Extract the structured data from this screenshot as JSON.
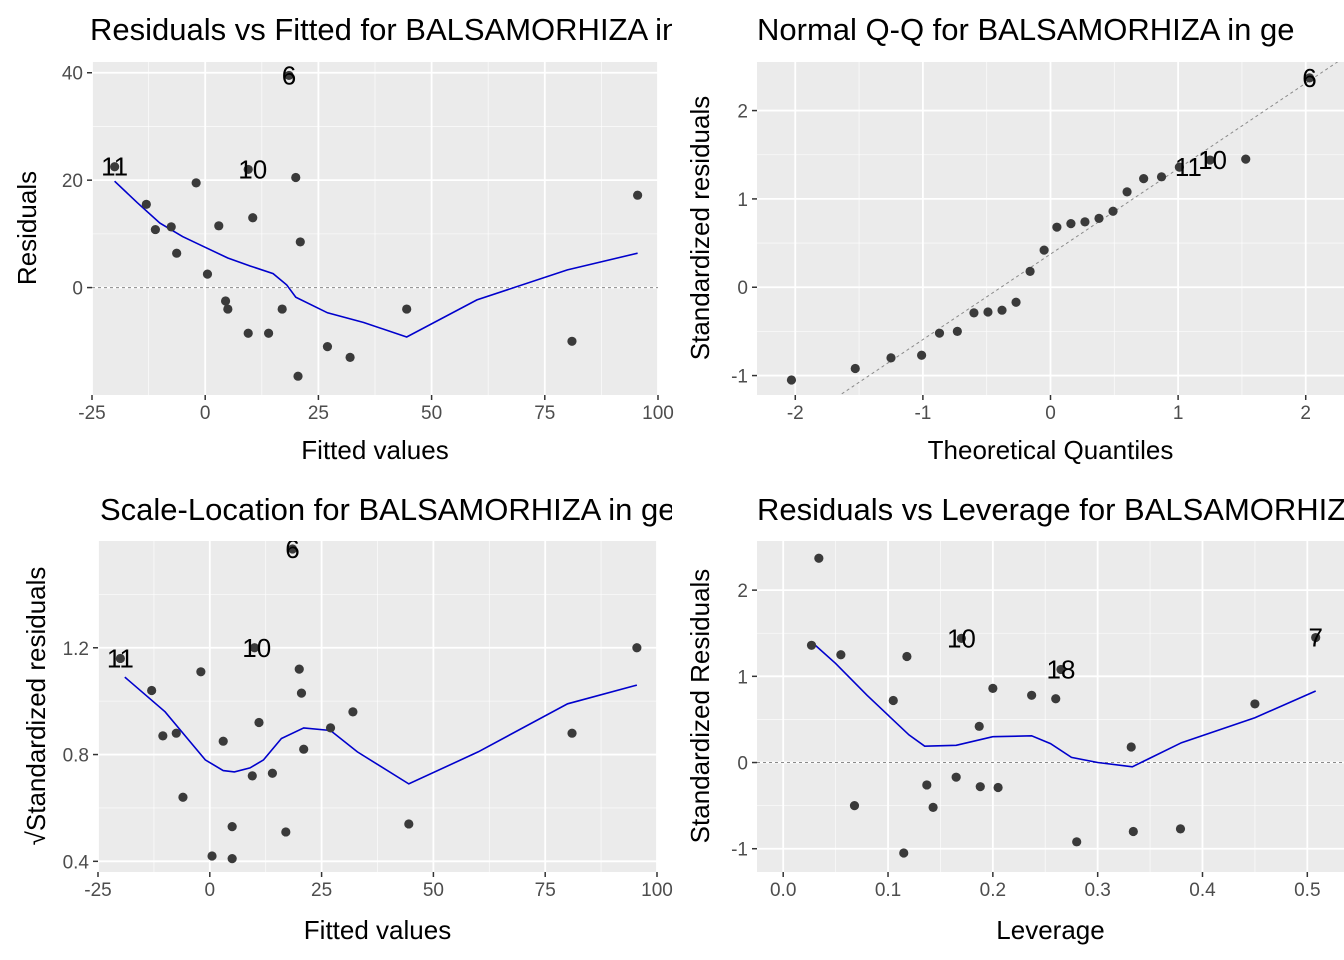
{
  "chart_data": [
    {
      "id": "p1",
      "type": "scatter",
      "title": "Residuals vs Fitted for BALSAMORHIZA in ge",
      "xlabel": "Fitted values",
      "ylabel": "Residuals",
      "xlim": [
        -25,
        100
      ],
      "ylim": [
        -20,
        42
      ],
      "xticks": [
        -25,
        0,
        25,
        50,
        75,
        100
      ],
      "yticks": [
        0,
        20,
        40
      ],
      "yminor": [
        10,
        30
      ],
      "xtick_labels": [
        "-25",
        "0",
        "25",
        "50",
        "75",
        "100"
      ],
      "ytick_labels": [
        "0",
        "20",
        "40"
      ],
      "hline": 0,
      "points": [
        {
          "x": -20,
          "y": 22.5
        },
        {
          "x": -13,
          "y": 15.5
        },
        {
          "x": -11,
          "y": 10.8
        },
        {
          "x": -7.5,
          "y": 11.3
        },
        {
          "x": -6.3,
          "y": 6.4
        },
        {
          "x": -2,
          "y": 19.5
        },
        {
          "x": 0.5,
          "y": 2.5
        },
        {
          "x": 3,
          "y": 11.5
        },
        {
          "x": 4.5,
          "y": -2.5
        },
        {
          "x": 5,
          "y": -4
        },
        {
          "x": 9.5,
          "y": -8.5
        },
        {
          "x": 9.5,
          "y": 22
        },
        {
          "x": 10.5,
          "y": 13
        },
        {
          "x": 14,
          "y": -8.5
        },
        {
          "x": 17,
          "y": -4
        },
        {
          "x": 18.5,
          "y": 39.5
        },
        {
          "x": 20,
          "y": 20.5
        },
        {
          "x": 20.5,
          "y": -16.5
        },
        {
          "x": 21,
          "y": 8.5
        },
        {
          "x": 27,
          "y": -11
        },
        {
          "x": 32,
          "y": -13
        },
        {
          "x": 44.5,
          "y": -4
        },
        {
          "x": 81,
          "y": -10
        },
        {
          "x": 95.5,
          "y": 17.2
        }
      ],
      "smooth": [
        {
          "x": -20,
          "y": 19.8
        },
        {
          "x": -15,
          "y": 15.8
        },
        {
          "x": -10,
          "y": 12
        },
        {
          "x": -5,
          "y": 9.5
        },
        {
          "x": 0,
          "y": 7.5
        },
        {
          "x": 5,
          "y": 5.5
        },
        {
          "x": 10,
          "y": 4
        },
        {
          "x": 15,
          "y": 2.6
        },
        {
          "x": 18,
          "y": 0.5
        },
        {
          "x": 20,
          "y": -1.8
        },
        {
          "x": 27,
          "y": -4.7
        },
        {
          "x": 35,
          "y": -6.5
        },
        {
          "x": 44.5,
          "y": -9.2
        },
        {
          "x": 60,
          "y": -2.3
        },
        {
          "x": 80,
          "y": 3.3
        },
        {
          "x": 95.5,
          "y": 6.4
        }
      ],
      "labels": [
        {
          "text": "6",
          "x": 18.5,
          "y": 39.5
        },
        {
          "text": "11",
          "x": -20,
          "y": 22.5
        },
        {
          "text": "10",
          "x": 10.5,
          "y": 22
        }
      ]
    },
    {
      "id": "p2",
      "type": "scatter",
      "title": "Normal Q-Q for BALSAMORHIZA in ge",
      "xlabel": "Theoretical Quantiles",
      "ylabel": "Standardized residuals",
      "xlim": [
        -2.3,
        2.3
      ],
      "ylim": [
        -1.22,
        2.55
      ],
      "xticks": [
        -2,
        -1,
        0,
        1,
        2
      ],
      "yticks": [
        -1,
        0,
        1,
        2
      ],
      "xminor": [
        -1.5,
        -0.5,
        0.5,
        1.5
      ],
      "yminor": [
        -0.5,
        0.5,
        1.5
      ],
      "xtick_labels": [
        "-2",
        "-1",
        "0",
        "1",
        "2"
      ],
      "ytick_labels": [
        "-1",
        "0",
        "1",
        "2"
      ],
      "refline": [
        [
          -2.3,
          -1.85
        ],
        [
          2.3,
          2.6
        ]
      ],
      "points": [
        {
          "x": -2.03,
          "y": -1.05
        },
        {
          "x": -1.53,
          "y": -0.92
        },
        {
          "x": -1.25,
          "y": -0.8
        },
        {
          "x": -1.01,
          "y": -0.77
        },
        {
          "x": -0.87,
          "y": -0.52
        },
        {
          "x": -0.73,
          "y": -0.5
        },
        {
          "x": -0.6,
          "y": -0.29
        },
        {
          "x": -0.49,
          "y": -0.28
        },
        {
          "x": -0.38,
          "y": -0.26
        },
        {
          "x": -0.27,
          "y": -0.17
        },
        {
          "x": -0.16,
          "y": 0.18
        },
        {
          "x": -0.05,
          "y": 0.42
        },
        {
          "x": 0.05,
          "y": 0.68
        },
        {
          "x": 0.16,
          "y": 0.72
        },
        {
          "x": 0.27,
          "y": 0.74
        },
        {
          "x": 0.38,
          "y": 0.78
        },
        {
          "x": 0.49,
          "y": 0.86
        },
        {
          "x": 0.6,
          "y": 1.08
        },
        {
          "x": 0.73,
          "y": 1.23
        },
        {
          "x": 0.87,
          "y": 1.25
        },
        {
          "x": 1.01,
          "y": 1.36
        },
        {
          "x": 1.25,
          "y": 1.44
        },
        {
          "x": 1.53,
          "y": 1.45
        },
        {
          "x": 2.03,
          "y": 2.37
        }
      ],
      "labels": [
        {
          "text": "6",
          "x": 2.03,
          "y": 2.37
        },
        {
          "text": "11",
          "x": 1.08,
          "y": 1.36
        },
        {
          "text": "10",
          "x": 1.27,
          "y": 1.44
        }
      ]
    },
    {
      "id": "p3",
      "type": "scatter",
      "title": "Scale-Location for BALSAMORHIZA in ge",
      "xlabel": "Fitted values",
      "ylabel": "√Standardized residuals",
      "xlim": [
        -25,
        100
      ],
      "ylim": [
        0.36,
        1.6
      ],
      "xticks": [
        -25,
        0,
        25,
        50,
        75,
        100
      ],
      "yticks": [
        0.4,
        0.8,
        1.2
      ],
      "yminor": [
        0.6,
        1.0,
        1.4
      ],
      "xtick_labels": [
        "-25",
        "0",
        "25",
        "50",
        "75",
        "100"
      ],
      "ytick_labels": [
        "0.4",
        "0.8",
        "1.2"
      ],
      "points": [
        {
          "x": -20,
          "y": 1.16
        },
        {
          "x": -13,
          "y": 1.04
        },
        {
          "x": -10.5,
          "y": 0.87
        },
        {
          "x": -7.5,
          "y": 0.88
        },
        {
          "x": -6,
          "y": 0.64
        },
        {
          "x": -2,
          "y": 1.11
        },
        {
          "x": 0.5,
          "y": 0.42
        },
        {
          "x": 3,
          "y": 0.85
        },
        {
          "x": 5,
          "y": 0.41
        },
        {
          "x": 5,
          "y": 0.53
        },
        {
          "x": 9.5,
          "y": 0.72
        },
        {
          "x": 10,
          "y": 1.2
        },
        {
          "x": 11,
          "y": 0.92
        },
        {
          "x": 14,
          "y": 0.73
        },
        {
          "x": 17,
          "y": 0.51
        },
        {
          "x": 18.5,
          "y": 1.57
        },
        {
          "x": 20,
          "y": 1.12
        },
        {
          "x": 20.5,
          "y": 1.03
        },
        {
          "x": 21,
          "y": 0.82
        },
        {
          "x": 27,
          "y": 0.9
        },
        {
          "x": 32,
          "y": 0.96
        },
        {
          "x": 44.5,
          "y": 0.54
        },
        {
          "x": 81,
          "y": 0.88
        },
        {
          "x": 95.5,
          "y": 1.2
        }
      ],
      "smooth": [
        {
          "x": -19,
          "y": 1.09
        },
        {
          "x": -10,
          "y": 0.96
        },
        {
          "x": -5,
          "y": 0.86
        },
        {
          "x": -1,
          "y": 0.78
        },
        {
          "x": 3,
          "y": 0.74
        },
        {
          "x": 5.5,
          "y": 0.735
        },
        {
          "x": 9,
          "y": 0.75
        },
        {
          "x": 12,
          "y": 0.78
        },
        {
          "x": 16,
          "y": 0.86
        },
        {
          "x": 21,
          "y": 0.9
        },
        {
          "x": 27,
          "y": 0.89
        },
        {
          "x": 33,
          "y": 0.81
        },
        {
          "x": 44.5,
          "y": 0.69
        },
        {
          "x": 60,
          "y": 0.81
        },
        {
          "x": 80,
          "y": 0.99
        },
        {
          "x": 95.5,
          "y": 1.06
        }
      ],
      "labels": [
        {
          "text": "6",
          "x": 18.5,
          "y": 1.57
        },
        {
          "text": "11",
          "x": -20,
          "y": 1.16
        },
        {
          "text": "10",
          "x": 10.5,
          "y": 1.2
        }
      ]
    },
    {
      "id": "p4",
      "type": "scatter",
      "title": "Residuals vs Leverage for BALSAMORHIZA in ge",
      "xlabel": "Leverage",
      "ylabel": "Standardized Residuals",
      "xlim": [
        -0.025,
        0.535
      ],
      "ylim": [
        -1.27,
        2.57
      ],
      "xticks": [
        0.0,
        0.1,
        0.2,
        0.3,
        0.4,
        0.5
      ],
      "yticks": [
        -1,
        0,
        1,
        2
      ],
      "xminor": [
        0.05,
        0.15,
        0.25,
        0.35,
        0.45
      ],
      "yminor": [
        -0.5,
        0.5,
        1.5
      ],
      "xtick_labels": [
        "0.0",
        "0.1",
        "0.2",
        "0.3",
        "0.4",
        "0.5"
      ],
      "ytick_labels": [
        "-1",
        "0",
        "1",
        "2"
      ],
      "hline": 0,
      "points": [
        {
          "x": 0.027,
          "y": 1.36
        },
        {
          "x": 0.034,
          "y": 2.37
        },
        {
          "x": 0.055,
          "y": 1.25
        },
        {
          "x": 0.068,
          "y": -0.5
        },
        {
          "x": 0.105,
          "y": 0.72
        },
        {
          "x": 0.115,
          "y": -1.05
        },
        {
          "x": 0.118,
          "y": 1.23
        },
        {
          "x": 0.137,
          "y": -0.26
        },
        {
          "x": 0.143,
          "y": -0.52
        },
        {
          "x": 0.165,
          "y": -0.17
        },
        {
          "x": 0.17,
          "y": 1.44
        },
        {
          "x": 0.187,
          "y": 0.42
        },
        {
          "x": 0.188,
          "y": -0.28
        },
        {
          "x": 0.2,
          "y": 0.86
        },
        {
          "x": 0.205,
          "y": -0.29
        },
        {
          "x": 0.237,
          "y": 0.78
        },
        {
          "x": 0.26,
          "y": 0.74
        },
        {
          "x": 0.265,
          "y": 1.08
        },
        {
          "x": 0.28,
          "y": -0.92
        },
        {
          "x": 0.332,
          "y": 0.18
        },
        {
          "x": 0.334,
          "y": -0.8
        },
        {
          "x": 0.379,
          "y": -0.77
        },
        {
          "x": 0.45,
          "y": 0.68
        },
        {
          "x": 0.508,
          "y": 1.45
        }
      ],
      "smooth": [
        {
          "x": 0.027,
          "y": 1.4
        },
        {
          "x": 0.05,
          "y": 1.15
        },
        {
          "x": 0.08,
          "y": 0.78
        },
        {
          "x": 0.1,
          "y": 0.55
        },
        {
          "x": 0.12,
          "y": 0.32
        },
        {
          "x": 0.135,
          "y": 0.19
        },
        {
          "x": 0.165,
          "y": 0.2
        },
        {
          "x": 0.2,
          "y": 0.3
        },
        {
          "x": 0.237,
          "y": 0.31
        },
        {
          "x": 0.255,
          "y": 0.22
        },
        {
          "x": 0.275,
          "y": 0.06
        },
        {
          "x": 0.3,
          "y": 0.0
        },
        {
          "x": 0.333,
          "y": -0.05
        },
        {
          "x": 0.38,
          "y": 0.23
        },
        {
          "x": 0.45,
          "y": 0.52
        },
        {
          "x": 0.508,
          "y": 0.83
        }
      ],
      "labels": [
        {
          "text": "10",
          "x": 0.17,
          "y": 1.44
        },
        {
          "text": "18",
          "x": 0.265,
          "y": 1.08
        },
        {
          "text": "7",
          "x": 0.508,
          "y": 1.45
        }
      ]
    }
  ]
}
